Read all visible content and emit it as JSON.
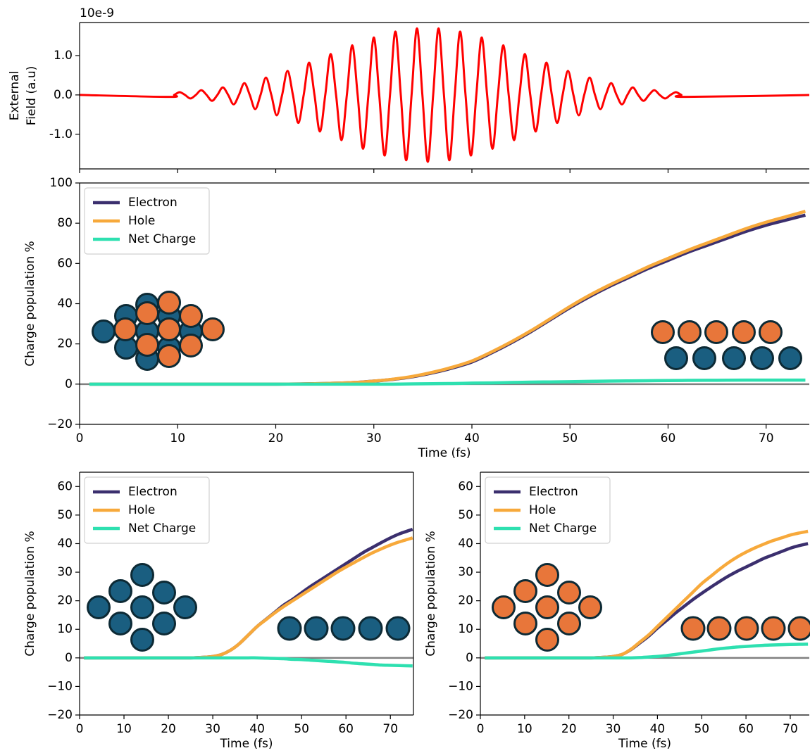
{
  "chart_data": [
    {
      "type": "line",
      "offset_text": "10e-9",
      "ylabel": [
        "External",
        "Field (a.u)"
      ],
      "x": [
        0,
        9.1,
        9.65,
        10.2,
        10.75,
        11.3,
        11.85,
        12.4,
        12.95,
        13.5,
        14.05,
        14.6,
        15.15,
        15.7,
        16.25,
        16.8,
        17.35,
        17.9,
        18.45,
        19.0,
        19.55,
        20.1,
        20.65,
        21.2,
        21.75,
        22.3,
        22.85,
        23.4,
        23.95,
        24.5,
        25.05,
        25.6,
        26.15,
        26.7,
        27.25,
        27.8,
        28.35,
        28.9,
        29.45,
        30.0,
        30.55,
        31.1,
        31.65,
        32.2,
        32.75,
        33.3,
        33.85,
        34.4,
        34.95,
        35.5,
        36.05,
        36.6,
        37.15,
        37.7,
        38.25,
        38.8,
        39.35,
        39.9,
        40.45,
        41.0,
        41.55,
        42.1,
        42.65,
        43.2,
        43.75,
        44.3,
        44.85,
        45.4,
        45.95,
        46.5,
        47.05,
        47.6,
        48.15,
        48.7,
        49.25,
        49.8,
        50.35,
        50.9,
        51.45,
        52.0,
        52.55,
        53.1,
        53.65,
        54.2,
        54.75,
        55.3,
        55.85,
        56.4,
        56.95,
        57.5,
        58.05,
        58.6,
        59.15,
        59.7,
        60.25,
        60.8,
        61.35,
        61.9,
        75
      ],
      "series": [
        {
          "color": "#ff0000",
          "values": [
            0,
            -0.05,
            0,
            0.07,
            0,
            -0.09,
            0,
            0.12,
            0,
            -0.15,
            0,
            0.19,
            0,
            -0.24,
            0,
            0.3,
            0,
            -0.36,
            0,
            0.44,
            0,
            -0.52,
            0,
            0.61,
            0,
            -0.71,
            0,
            0.82,
            0,
            -0.93,
            0,
            1.04,
            0,
            -1.15,
            0,
            1.26,
            0,
            -1.37,
            0,
            1.46,
            0,
            -1.54,
            0,
            1.61,
            0,
            -1.66,
            0,
            1.69,
            0,
            -1.7,
            0,
            1.69,
            0,
            -1.66,
            0,
            1.61,
            0,
            -1.54,
            0,
            1.46,
            0,
            -1.37,
            0,
            1.26,
            0,
            -1.15,
            0,
            1.04,
            0,
            -0.93,
            0,
            0.82,
            0,
            -0.71,
            0,
            0.61,
            0,
            -0.52,
            0,
            0.44,
            0,
            -0.36,
            0,
            0.3,
            0,
            -0.24,
            0,
            0.19,
            0,
            -0.15,
            0,
            0.12,
            0,
            -0.09,
            0,
            0.07,
            0,
            -0.05,
            0
          ]
        }
      ],
      "xlim": [
        0,
        74.4
      ],
      "ylim": [
        -1.88,
        1.84
      ],
      "xticks": [
        0,
        10,
        20,
        30,
        40,
        50,
        60,
        70
      ],
      "xtick_labels": false,
      "yticks": [
        {
          "value": 1,
          "label": "1.0"
        },
        {
          "value": 0,
          "label": "0.0"
        },
        {
          "value": -1,
          "label": "-1.0"
        }
      ]
    },
    {
      "type": "line",
      "xlabel": "Time (fs)",
      "ylabel": "Charge population %",
      "legend": "upper left",
      "hline": 0,
      "x": [
        1,
        10,
        20,
        25,
        28,
        30,
        32,
        34,
        36,
        38,
        40,
        42,
        44,
        46,
        48,
        50,
        52,
        54,
        56,
        58,
        60,
        62,
        64,
        66,
        68,
        70,
        72,
        74
      ],
      "series": [
        {
          "name": "Electron",
          "color": "#3b2f6e",
          "values": [
            0,
            0,
            0,
            0.3,
            0.8,
            1.5,
            2.4,
            3.7,
            5.6,
            8,
            11,
            15.5,
            20.5,
            26,
            32,
            38,
            43.5,
            48.5,
            53,
            57.5,
            61.5,
            65.5,
            69,
            72.5,
            76,
            79,
            81.5,
            84
          ]
        },
        {
          "name": "Hole",
          "color": "#f7a93b",
          "values": [
            0,
            0,
            0,
            0.3,
            0.8,
            1.5,
            2.5,
            3.9,
            5.9,
            8.4,
            11.5,
            16,
            21,
            26.5,
            32.5,
            38.6,
            44.2,
            49.2,
            53.8,
            58.4,
            62.5,
            66.5,
            70.2,
            73.8,
            77.4,
            80.5,
            83.2,
            85.9
          ]
        },
        {
          "name": "Net Charge",
          "color": "#2ee0b0",
          "values": [
            0,
            0,
            0,
            0,
            0,
            0,
            0,
            0.1,
            0.2,
            0.3,
            0.5,
            0.6,
            0.8,
            1,
            1.1,
            1.2,
            1.4,
            1.5,
            1.6,
            1.7,
            1.8,
            1.85,
            1.9,
            1.95,
            2,
            2,
            2,
            2
          ]
        }
      ],
      "xlim": [
        0,
        74.4
      ],
      "ylim": [
        -20,
        100
      ],
      "xticks": [
        0,
        10,
        20,
        30,
        40,
        50,
        60,
        70
      ],
      "yticks": [
        {
          "value": -20,
          "label": "−20"
        },
        0,
        20,
        40,
        60,
        80,
        100
      ]
    },
    {
      "type": "line",
      "xlabel": "Time (fs)",
      "ylabel": "Charge population %",
      "legend": "upper left",
      "hline": 0,
      "x": [
        1,
        10,
        20,
        25,
        28,
        30,
        32,
        34,
        36,
        38,
        40,
        42,
        44,
        46,
        48,
        50,
        52,
        54,
        56,
        58,
        60,
        62,
        64,
        66,
        68,
        70,
        72,
        75
      ],
      "series": [
        {
          "name": "Electron",
          "color": "#3b2f6e",
          "values": [
            0,
            0,
            0,
            0,
            0.2,
            0.5,
            1.2,
            2.7,
            5,
            8,
            11,
            13.5,
            16,
            18.5,
            20.5,
            22.8,
            25,
            27,
            29,
            31,
            33,
            35,
            37,
            38.7,
            40.4,
            42,
            43.4,
            45
          ]
        },
        {
          "name": "Hole",
          "color": "#f7a93b",
          "values": [
            0,
            0,
            0,
            0,
            0.2,
            0.5,
            1.2,
            2.7,
            5,
            8,
            11,
            13.4,
            15.8,
            18,
            20,
            22,
            24,
            26,
            28,
            30,
            31.8,
            33.5,
            35.2,
            36.8,
            38.2,
            39.5,
            40.6,
            42
          ]
        },
        {
          "name": "Net Charge",
          "color": "#2ee0b0",
          "values": [
            0,
            0,
            0,
            0,
            0,
            0,
            0,
            0,
            0,
            0,
            0,
            -0.1,
            -0.2,
            -0.3,
            -0.5,
            -0.6,
            -0.8,
            -1,
            -1.2,
            -1.4,
            -1.6,
            -1.9,
            -2.1,
            -2.3,
            -2.5,
            -2.6,
            -2.7,
            -2.8
          ]
        }
      ],
      "xlim": [
        0,
        75.2
      ],
      "ylim": [
        -20,
        65
      ],
      "xticks": [
        0,
        10,
        20,
        30,
        40,
        50,
        60,
        70
      ],
      "yticks": [
        {
          "value": -20,
          "label": "−20"
        },
        {
          "value": -10,
          "label": "−10"
        },
        0,
        10,
        20,
        30,
        40,
        50,
        60
      ]
    },
    {
      "type": "line",
      "xlabel": "Time (fs)",
      "ylabel": "Charge population %",
      "legend": "upper left",
      "hline": 0,
      "x": [
        1,
        10,
        20,
        25,
        28,
        30,
        32,
        34,
        36,
        38,
        40,
        42,
        44,
        46,
        48,
        50,
        52,
        54,
        56,
        58,
        60,
        62,
        64,
        66,
        68,
        70,
        72,
        74
      ],
      "series": [
        {
          "name": "Electron",
          "color": "#3b2f6e",
          "values": [
            0,
            0,
            0,
            0,
            0.2,
            0.5,
            1.2,
            2.9,
            5.2,
            7.6,
            10.4,
            13,
            15.6,
            18,
            20.4,
            22.6,
            24.7,
            26.7,
            28.6,
            30.3,
            31.8,
            33.3,
            34.8,
            36,
            37.2,
            38.4,
            39.3,
            40
          ]
        },
        {
          "name": "Hole",
          "color": "#f7a93b",
          "values": [
            0,
            0,
            0,
            0,
            0.2,
            0.5,
            1.2,
            3,
            5.5,
            8,
            11,
            14,
            17,
            20,
            23,
            26,
            28.5,
            31,
            33.3,
            35.3,
            37,
            38.5,
            39.8,
            41,
            42,
            43,
            43.7,
            44.3
          ]
        },
        {
          "name": "Net Charge",
          "color": "#2ee0b0",
          "values": [
            0,
            0,
            0,
            0,
            0,
            0,
            0,
            0,
            0.1,
            0.3,
            0.5,
            0.8,
            1.2,
            1.6,
            2,
            2.4,
            2.8,
            3.2,
            3.5,
            3.8,
            4,
            4.2,
            4.4,
            4.5,
            4.6,
            4.7,
            4.75,
            4.8
          ]
        }
      ],
      "xlim": [
        0,
        74.3
      ],
      "ylim": [
        -20,
        65
      ],
      "xticks": [
        0,
        10,
        20,
        30,
        40,
        50,
        60,
        70
      ],
      "yticks": [
        {
          "value": -20,
          "label": "−20"
        },
        {
          "value": -10,
          "label": "−10"
        },
        0,
        10,
        20,
        30,
        40,
        50,
        60
      ]
    }
  ]
}
